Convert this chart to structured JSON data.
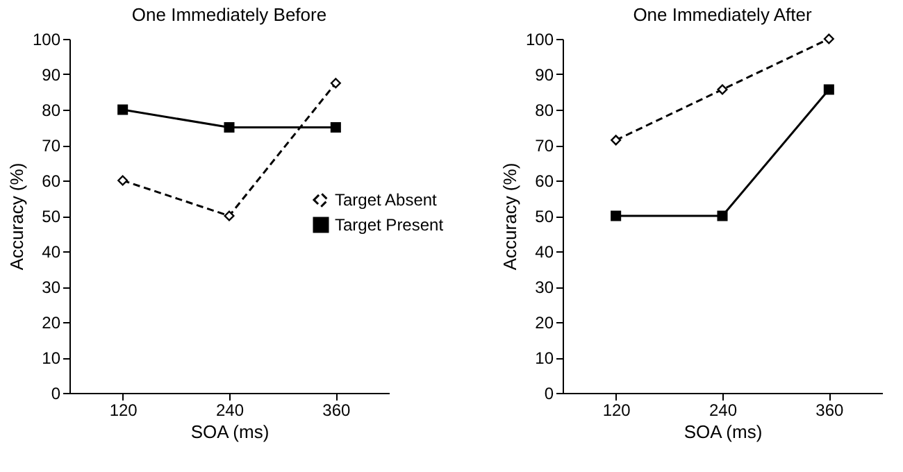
{
  "chart_data": [
    {
      "type": "line",
      "title": "One Immediately Before",
      "xlabel": "SOA (ms)",
      "ylabel": "Accuracy (%)",
      "categories": [
        "120",
        "240",
        "360"
      ],
      "ylim": [
        0,
        100
      ],
      "yticks": [
        0,
        10,
        20,
        30,
        40,
        50,
        60,
        70,
        80,
        90,
        100
      ],
      "grid": false,
      "legend": "right",
      "series": [
        {
          "name": "Target Absent",
          "color": "#000000",
          "marker": "diamond",
          "line_style": "dashed",
          "values": [
            60,
            50,
            87.5
          ]
        },
        {
          "name": "Target Present",
          "color": "#000000",
          "marker": "square",
          "line_style": "solid",
          "values": [
            80,
            75,
            75
          ]
        }
      ]
    },
    {
      "type": "line",
      "title": "One Immediately After",
      "xlabel": "SOA (ms)",
      "ylabel": "Accuracy (%)",
      "categories": [
        "120",
        "240",
        "360"
      ],
      "ylim": [
        0,
        100
      ],
      "yticks": [
        0,
        10,
        20,
        30,
        40,
        50,
        60,
        70,
        80,
        90,
        100
      ],
      "grid": false,
      "legend": false,
      "series": [
        {
          "color": "#000000",
          "marker": "diamond",
          "line_style": "dashed",
          "values": [
            71.4,
            85.7,
            100
          ]
        },
        {
          "color": "#000000",
          "marker": "square",
          "line_style": "solid",
          "values": [
            50,
            50,
            85.7
          ]
        }
      ]
    }
  ]
}
